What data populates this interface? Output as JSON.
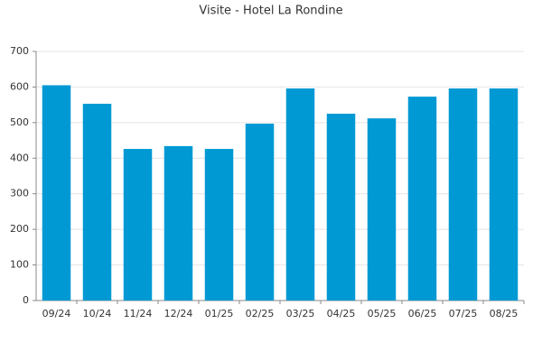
{
  "chart_data": {
    "type": "bar",
    "title": "Visite - Hotel La Rondine",
    "categories": [
      "09/24",
      "10/24",
      "11/24",
      "12/24",
      "01/25",
      "02/25",
      "03/25",
      "04/25",
      "05/25",
      "06/25",
      "07/25",
      "08/25"
    ],
    "values": [
      605,
      553,
      426,
      434,
      426,
      497,
      596,
      525,
      512,
      573,
      596,
      596
    ],
    "color": "#0099d4",
    "ylim": [
      0,
      700
    ],
    "yticks": [
      0,
      100,
      200,
      300,
      400,
      500,
      600,
      700
    ],
    "grid": true
  }
}
